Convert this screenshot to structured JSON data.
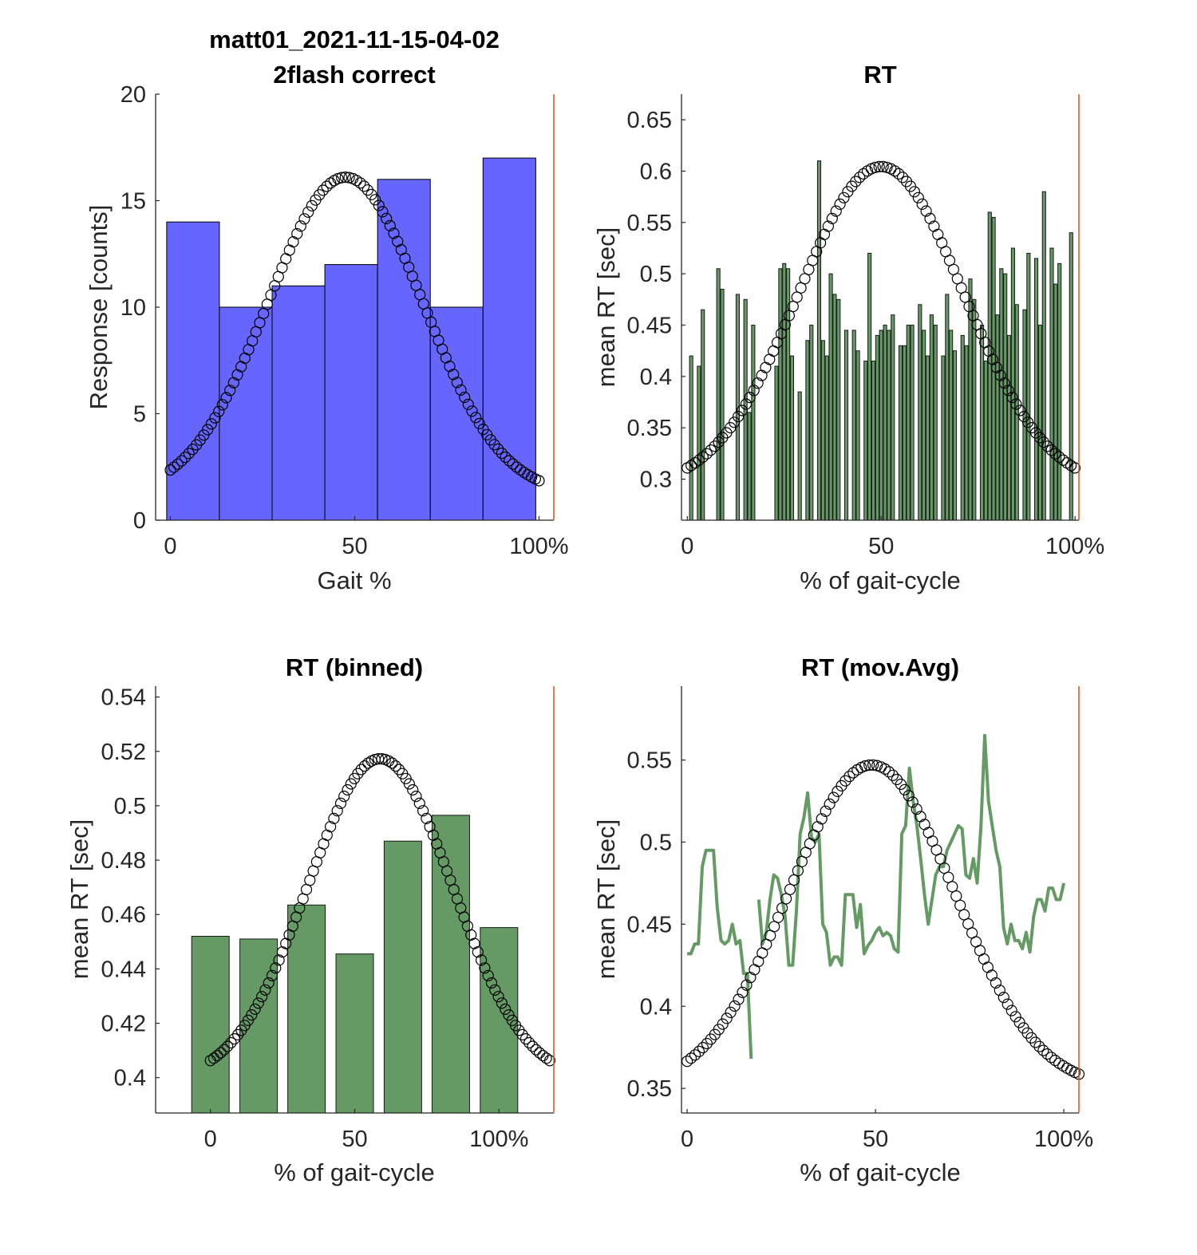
{
  "chart_data": [
    {
      "panel": "top-left",
      "type": "bar",
      "title": [
        "matt01_2021-11-15-04-02",
        "2flash correct"
      ],
      "xlabel": "Gait %",
      "ylabel": "Response [counts]",
      "xlim": [
        -4,
        104
      ],
      "ylim": [
        0,
        20
      ],
      "xticks": [
        0,
        50,
        100
      ],
      "xticklabels": [
        "0",
        "50",
        "100%"
      ],
      "yticks": [
        0,
        5,
        10,
        15,
        20
      ],
      "yticklabels": [
        "0",
        "5",
        "10",
        "15",
        "20"
      ],
      "bar_color": "#6666ff",
      "bar_edges": [
        -1,
        13.3,
        27.6,
        41.9,
        56.2,
        70.5,
        84.8,
        99.1
      ],
      "values": [
        14,
        10,
        11,
        12,
        16,
        10,
        17
      ],
      "gaussian": {
        "x_start": 0,
        "x_end": 100,
        "points": 100,
        "mu": 47.5,
        "sigma": 21,
        "base": 1.2,
        "peak": 16.1,
        "marker": "circle"
      }
    },
    {
      "panel": "top-right",
      "type": "bar",
      "title": "RT",
      "xlabel": "% of gait-cycle",
      "ylabel": "mean RT [sec]",
      "xlim": [
        -1.5,
        101
      ],
      "ylim": [
        0.26,
        0.675
      ],
      "xticks": [
        0,
        50,
        100
      ],
      "xticklabels": [
        "0",
        "50",
        "100%"
      ],
      "yticks": [
        0.3,
        0.35,
        0.4,
        0.45,
        0.5,
        0.55,
        0.6,
        0.65
      ],
      "yticklabels": [
        "0.3",
        "0.35",
        "0.4",
        "0.45",
        "0.5",
        "0.55",
        "0.6",
        "0.65"
      ],
      "bar_color": "#659a65",
      "x": [
        1,
        3,
        4,
        8,
        9,
        13,
        15,
        16,
        17,
        23,
        24,
        25,
        26,
        27,
        29,
        31,
        32,
        34,
        35,
        36,
        37,
        38,
        39,
        41,
        43,
        44,
        46,
        47,
        48,
        49,
        50,
        51,
        52,
        53,
        55,
        56,
        57,
        58,
        60,
        61,
        62,
        63,
        64,
        66,
        67,
        68,
        69,
        71,
        72,
        73,
        74,
        76,
        77,
        78,
        79,
        80,
        81,
        82,
        83,
        84,
        85,
        87,
        88,
        90,
        91,
        92,
        94,
        95,
        96,
        99
      ],
      "values": [
        0.42,
        0.41,
        0.465,
        0.505,
        0.485,
        0.48,
        0.475,
        0.365,
        0.45,
        0.41,
        0.505,
        0.51,
        0.505,
        0.42,
        0.385,
        0.435,
        0.45,
        0.61,
        0.435,
        0.42,
        0.5,
        0.48,
        0.475,
        0.445,
        0.445,
        0.425,
        0.415,
        0.52,
        0.415,
        0.44,
        0.445,
        0.45,
        0.445,
        0.46,
        0.43,
        0.43,
        0.45,
        0.45,
        0.47,
        0.445,
        0.42,
        0.46,
        0.45,
        0.42,
        0.48,
        0.445,
        0.425,
        0.44,
        0.43,
        0.495,
        0.475,
        0.45,
        0.415,
        0.56,
        0.555,
        0.46,
        0.505,
        0.5,
        0.44,
        0.525,
        0.47,
        0.465,
        0.52,
        0.515,
        0.45,
        0.58,
        0.525,
        0.49,
        0.51,
        0.54
      ]
    },
    {
      "panel": "bottom-left",
      "type": "bar",
      "title": "RT (binned)",
      "xlabel": "% of gait-cycle",
      "ylabel": "mean RT [sec]",
      "xlim": [
        -19,
        119
      ],
      "ylim": [
        0.387,
        0.544
      ],
      "xticks": [
        0,
        50,
        100
      ],
      "xticklabels": [
        "0",
        "50",
        "100%"
      ],
      "yticks": [
        0.4,
        0.42,
        0.44,
        0.46,
        0.48,
        0.5,
        0.52,
        0.54
      ],
      "yticklabels": [
        "0.4",
        "0.42",
        "0.44",
        "0.46",
        "0.48",
        "0.5",
        "0.52",
        "0.54"
      ],
      "bar_color": "#659a65",
      "x": [
        0,
        16.7,
        33.3,
        50,
        66.7,
        83.3,
        100
      ],
      "bar_width": 13,
      "values": [
        0.452,
        0.451,
        0.4635,
        0.4455,
        0.487,
        0.4965,
        0.4552
      ]
    },
    {
      "panel": "bottom-right",
      "type": "line",
      "title": "RT (mov.Avg)",
      "xlabel": "% of gait-cycle",
      "ylabel": "mean RT [sec]",
      "xlim": [
        -1.5,
        104
      ],
      "ylim": [
        0.335,
        0.595
      ],
      "xticks": [
        0,
        50,
        100
      ],
      "xticklabels": [
        "0",
        "50",
        "100%"
      ],
      "yticks": [
        0.35,
        0.4,
        0.45,
        0.5,
        0.55
      ],
      "yticklabels": [
        "0.35",
        "0.4",
        "0.45",
        "0.5",
        "0.55"
      ],
      "line_color": "#659a65",
      "x": [
        0,
        1,
        2,
        3,
        4,
        5,
        6,
        7,
        8,
        9,
        10,
        11,
        12,
        13,
        14,
        15,
        16,
        17,
        18,
        19,
        20,
        21,
        22,
        23,
        24,
        25,
        26,
        27,
        28,
        29,
        30,
        31,
        32,
        33,
        34,
        35,
        36,
        37,
        38,
        39,
        40,
        41,
        42,
        43,
        44,
        45,
        46,
        47,
        48,
        49,
        50,
        51,
        52,
        53,
        54,
        55,
        56,
        57,
        58,
        59,
        60,
        61,
        62,
        63,
        64,
        65,
        66,
        67,
        68,
        69,
        70,
        71,
        72,
        73,
        74,
        75,
        76,
        77,
        78,
        79,
        80,
        81,
        82,
        83,
        84,
        85,
        86,
        87,
        88,
        89,
        90,
        91,
        92,
        93,
        94,
        95,
        96,
        97,
        98,
        99,
        100
      ],
      "values": [
        0.432,
        0.432,
        0.438,
        0.438,
        0.485,
        0.495,
        0.495,
        0.495,
        0.46,
        0.44,
        0.438,
        0.44,
        0.45,
        0.438,
        0.44,
        0.42,
        0.42,
        0.368,
        null,
        0.465,
        0.438,
        0.445,
        0.465,
        0.48,
        0.478,
        0.468,
        0.455,
        0.425,
        0.425,
        0.458,
        0.505,
        0.515,
        0.53,
        0.503,
        0.5,
        0.505,
        0.45,
        0.445,
        0.425,
        0.43,
        0.43,
        0.425,
        0.468,
        0.468,
        0.468,
        0.448,
        0.462,
        0.432,
        0.437,
        0.44,
        0.445,
        0.448,
        0.443,
        0.445,
        0.443,
        0.435,
        0.433,
        0.505,
        0.51,
        0.545,
        0.525,
        0.51,
        0.49,
        0.468,
        0.45,
        0.465,
        0.48,
        0.485,
        0.485,
        0.495,
        0.5,
        0.505,
        0.51,
        0.508,
        0.48,
        0.478,
        0.49,
        0.475,
        0.51,
        0.565,
        0.525,
        0.51,
        0.495,
        0.485,
        0.448,
        0.438,
        0.45,
        0.44,
        0.44,
        0.435,
        0.445,
        0.433,
        0.455,
        0.465,
        0.465,
        0.458,
        0.472,
        0.472,
        0.465,
        0.465,
        0.475
      ],
      "gaussian": {
        "x_start": 0,
        "x_end": 104,
        "points": 100,
        "mu": 49,
        "sigma": 22,
        "base": 0.35,
        "peak": 0.547,
        "marker": "circle"
      }
    }
  ]
}
